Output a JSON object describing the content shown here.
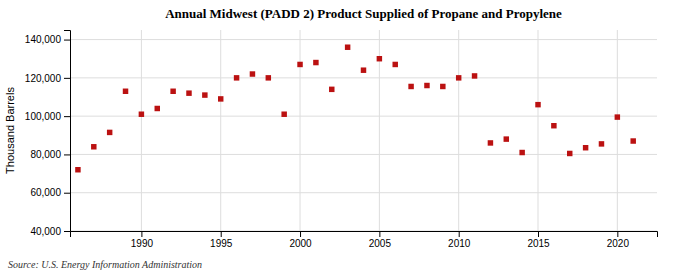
{
  "chart_data": {
    "type": "scatter",
    "title": "Annual Midwest (PADD 2) Product Supplied of Propane and Propylene",
    "ylabel": "Thousand Barrels",
    "annotations": [
      "Source: U.S. Energy Information Administration"
    ],
    "x": [
      1986,
      1987,
      1988,
      1989,
      1990,
      1991,
      1992,
      1993,
      1994,
      1995,
      1996,
      1997,
      1998,
      1999,
      2000,
      2001,
      2002,
      2003,
      2004,
      2005,
      2006,
      2007,
      2008,
      2009,
      2010,
      2011,
      2012,
      2013,
      2014,
      2015,
      2016,
      2017,
      2018,
      2019,
      2020,
      2021
    ],
    "values": [
      72000,
      84000,
      91500,
      113000,
      101000,
      104000,
      113000,
      112000,
      111000,
      109000,
      120000,
      122000,
      120000,
      101000,
      127000,
      128000,
      114000,
      136000,
      124000,
      130000,
      127000,
      115500,
      116000,
      115500,
      120000,
      121000,
      86000,
      88000,
      81000,
      106000,
      95000,
      80500,
      83500,
      85500,
      99500,
      87000
    ],
    "color": "#bb1111",
    "marker": "square",
    "xlim": [
      1985.5,
      2022.5
    ],
    "xticks": [
      1990,
      1995,
      2000,
      2005,
      2010,
      2015,
      2020
    ],
    "ylim": [
      40000,
      145000
    ],
    "yticks": [
      {
        "value": 40000,
        "label": "40,000"
      },
      {
        "value": 60000,
        "label": "60,000"
      },
      {
        "value": 80000,
        "label": "80,000"
      },
      {
        "value": 100000,
        "label": "100,000"
      },
      {
        "value": 120000,
        "label": "120,000"
      },
      {
        "value": 140000,
        "label": "140,000"
      }
    ],
    "grid": true
  }
}
